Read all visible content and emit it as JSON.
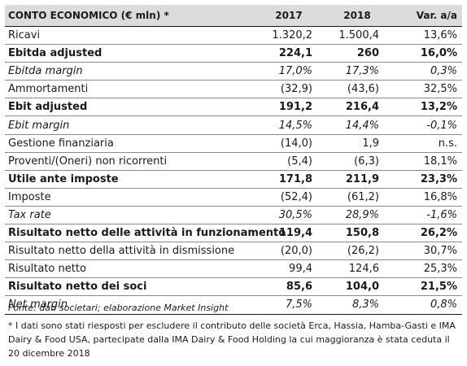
{
  "table": {
    "headers": [
      "CONTO ECONOMICO (€ mln) *",
      "2017",
      "2018",
      "Var. a/a"
    ],
    "rows": [
      {
        "label": "Ricavi",
        "y2017": "1.320,2",
        "y2018": "1.500,4",
        "var": "13,6%",
        "style": "normal"
      },
      {
        "label": "Ebitda adjusted",
        "y2017": "224,1",
        "y2018": "260",
        "var": "16,0%",
        "style": "bold"
      },
      {
        "label": "Ebitda margin",
        "y2017": "17,0%",
        "y2018": "17,3%",
        "var": "0,3%",
        "style": "italic"
      },
      {
        "label": "Ammortamenti",
        "y2017": "(32,9)",
        "y2018": "(43,6)",
        "var": "32,5%",
        "style": "normal"
      },
      {
        "label": "Ebit adjusted",
        "y2017": "191,2",
        "y2018": "216,4",
        "var": "13,2%",
        "style": "bold"
      },
      {
        "label": "Ebit margin",
        "y2017": "14,5%",
        "y2018": "14,4%",
        "var": "-0,1%",
        "style": "italic"
      },
      {
        "label": "Gestione finanziaria",
        "y2017": "(14,0)",
        "y2018": "1,9",
        "var": "n.s.",
        "style": "normal"
      },
      {
        "label": "Proventi/(Oneri) non ricorrenti",
        "y2017": "(5,4)",
        "y2018": "(6,3)",
        "var": "18,1%",
        "style": "normal"
      },
      {
        "label": "Utile ante imposte",
        "y2017": "171,8",
        "y2018": "211,9",
        "var": "23,3%",
        "style": "bold"
      },
      {
        "label": "Imposte",
        "y2017": "(52,4)",
        "y2018": "(61,2)",
        "var": "16,8%",
        "style": "normal"
      },
      {
        "label": "Tax rate",
        "y2017": "30,5%",
        "y2018": "28,9%",
        "var": "-1,6%",
        "style": "italic"
      },
      {
        "label": "Risultato netto delle attività in funzionamento",
        "y2017": "119,4",
        "y2018": "150,8",
        "var": "26,2%",
        "style": "bold"
      },
      {
        "label": "Risultato netto della attività in dismissione",
        "y2017": "(20,0)",
        "y2018": "(26,2)",
        "var": "30,7%",
        "style": "normal"
      },
      {
        "label": "Risultato netto",
        "y2017": "99,4",
        "y2018": "124,6",
        "var": "25,3%",
        "style": "normal"
      },
      {
        "label": "Risultato netto dei soci",
        "y2017": "85,6",
        "y2018": "104,0",
        "var": "21,5%",
        "style": "bold"
      },
      {
        "label": "Net margin",
        "y2017": "7,5%",
        "y2018": "8,3%",
        "var": "0,8%",
        "style": "italic"
      }
    ]
  },
  "source": "Fonte: dati societari; elaborazione Market Insight",
  "footnote": "* I dati sono stati riesposti per escludere il contributo delle società Erca, Hassia, Hamba-Gasti e IMA Dairy & Food USA, partecipate dalla IMA Dairy & Food Holding la cui maggioranza è stata ceduta il 20 dicembre 2018"
}
